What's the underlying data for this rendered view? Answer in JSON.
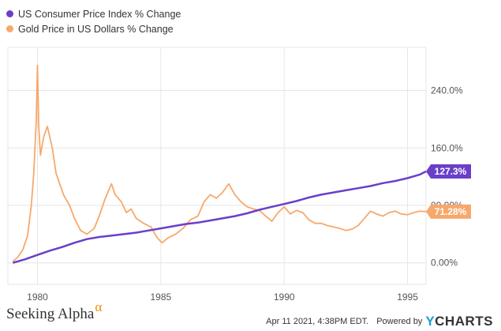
{
  "legend": {
    "items": [
      {
        "label": "US Consumer Price Index % Change",
        "color": "#6a3fc9"
      },
      {
        "label": "Gold Price in US Dollars % Change",
        "color": "#f7a86c"
      }
    ]
  },
  "footer": {
    "brand": "Seeking Alpha",
    "brand_mark": "α",
    "timestamp": "Apr 11 2021, 4:38PM EDT.",
    "powered_by": "Powered by",
    "provider_y": "Y",
    "provider_rest": "CHARTS"
  },
  "chart_data": {
    "type": "line",
    "xlabel": "",
    "ylabel": "",
    "xlim": [
      1978.8,
      1995.75
    ],
    "ylim": [
      -30,
      300
    ],
    "x_ticks": [
      1980,
      1985,
      1990,
      1995
    ],
    "x_tick_labels": [
      "1980",
      "1985",
      "1990",
      "1995"
    ],
    "y_ticks": [
      0,
      80,
      160,
      240
    ],
    "y_tick_labels": [
      "0.00%",
      "80.00%",
      "160.0%",
      "240.0%"
    ],
    "grid": true,
    "legend_position": "top-left",
    "series": [
      {
        "name": "US Consumer Price Index % Change",
        "color": "#6a3fc9",
        "end_label": "127.3%",
        "x": [
          1979.0,
          1979.5,
          1980.0,
          1980.5,
          1981.0,
          1981.5,
          1982.0,
          1982.5,
          1983.0,
          1983.5,
          1984.0,
          1984.5,
          1985.0,
          1985.5,
          1986.0,
          1986.5,
          1987.0,
          1987.5,
          1988.0,
          1988.5,
          1989.0,
          1989.5,
          1990.0,
          1990.5,
          1991.0,
          1991.5,
          1992.0,
          1992.5,
          1993.0,
          1993.5,
          1994.0,
          1994.5,
          1995.0,
          1995.5,
          1995.75
        ],
        "values": [
          0.0,
          5.0,
          11.0,
          17.0,
          22.0,
          28.0,
          33.0,
          36.0,
          38.0,
          40.0,
          42.0,
          45.0,
          48.0,
          51.0,
          54.0,
          56.0,
          59.0,
          62.0,
          65.0,
          69.0,
          74.0,
          78.0,
          82.0,
          86.0,
          91.0,
          95.0,
          98.0,
          101.0,
          104.0,
          107.0,
          111.0,
          114.0,
          118.0,
          123.0,
          127.3
        ]
      },
      {
        "name": "Gold Price in US Dollars % Change",
        "color": "#f7a86c",
        "end_label": "71.28%",
        "x": [
          1979.0,
          1979.2,
          1979.4,
          1979.6,
          1979.75,
          1979.85,
          1979.95,
          1980.0,
          1980.05,
          1980.12,
          1980.25,
          1980.4,
          1980.6,
          1980.75,
          1980.9,
          1981.05,
          1981.3,
          1981.5,
          1981.75,
          1982.0,
          1982.3,
          1982.5,
          1982.75,
          1983.0,
          1983.15,
          1983.4,
          1983.6,
          1983.8,
          1984.0,
          1984.3,
          1984.6,
          1984.85,
          1985.05,
          1985.3,
          1985.6,
          1985.9,
          1986.2,
          1986.5,
          1986.75,
          1987.0,
          1987.25,
          1987.5,
          1987.75,
          1988.0,
          1988.25,
          1988.5,
          1988.75,
          1989.0,
          1989.25,
          1989.5,
          1989.75,
          1990.0,
          1990.25,
          1990.5,
          1990.75,
          1991.0,
          1991.25,
          1991.5,
          1991.75,
          1992.0,
          1992.25,
          1992.5,
          1992.75,
          1993.0,
          1993.25,
          1993.5,
          1993.75,
          1994.0,
          1994.25,
          1994.5,
          1994.75,
          1995.0,
          1995.25,
          1995.5,
          1995.75
        ],
        "values": [
          2.0,
          8.0,
          18.0,
          38.0,
          80.0,
          125.0,
          200.0,
          275.0,
          190.0,
          150.0,
          175.0,
          190.0,
          160.0,
          125.0,
          110.0,
          95.0,
          80.0,
          62.0,
          45.0,
          40.0,
          48.0,
          65.0,
          90.0,
          110.0,
          95.0,
          85.0,
          70.0,
          75.0,
          62.0,
          55.0,
          50.0,
          35.0,
          28.0,
          35.0,
          40.0,
          48.0,
          60.0,
          65.0,
          85.0,
          95.0,
          90.0,
          98.0,
          110.0,
          95.0,
          85.0,
          78.0,
          75.0,
          73.0,
          65.0,
          58.0,
          70.0,
          78.0,
          68.0,
          73.0,
          70.0,
          60.0,
          55.0,
          55.0,
          52.0,
          50.0,
          48.0,
          45.0,
          47.0,
          52.0,
          62.0,
          72.0,
          68.0,
          65.0,
          70.0,
          72.0,
          68.0,
          67.0,
          70.0,
          72.0,
          71.28
        ]
      }
    ]
  }
}
